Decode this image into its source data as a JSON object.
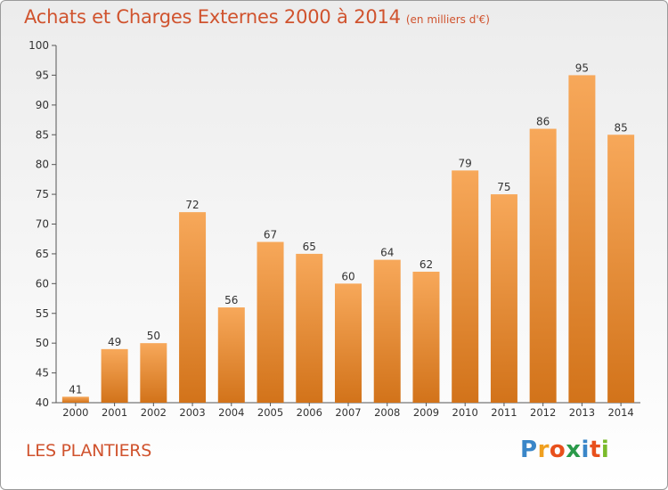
{
  "header": {
    "title": "Achats et Charges Externes 2000 à 2014",
    "unit": "(en milliers d'€)"
  },
  "footer": {
    "commune": "LES PLANTIERS",
    "logo_letters": [
      "P",
      "r",
      "o",
      "x",
      "i",
      "t",
      "i"
    ],
    "logo_colors": [
      "#3a86c8",
      "#f0a020",
      "#e8501c",
      "#2a9a4a",
      "#3a86c8",
      "#e8501c",
      "#7aba2a"
    ]
  },
  "chart_data": {
    "type": "bar",
    "title": "Achats et Charges Externes 2000 à 2014",
    "subtitle": "(en milliers d'€)",
    "categories": [
      "2000",
      "2001",
      "2002",
      "2003",
      "2004",
      "2005",
      "2006",
      "2007",
      "2008",
      "2009",
      "2010",
      "2011",
      "2012",
      "2013",
      "2014"
    ],
    "values": [
      41,
      49,
      50,
      72,
      56,
      67,
      65,
      60,
      64,
      62,
      79,
      75,
      86,
      95,
      85
    ],
    "data_labels": [
      "41",
      "49",
      "50",
      "72",
      "56",
      "67",
      "65",
      "60",
      "64",
      "62",
      "79",
      "75",
      "86",
      "95",
      "85"
    ],
    "ylim": [
      40,
      100
    ],
    "yticks": [
      40,
      45,
      50,
      55,
      60,
      65,
      70,
      75,
      80,
      85,
      90,
      95,
      100
    ],
    "grid": false,
    "legend": "none",
    "bar_color_light": "#f7a85a",
    "bar_color_dark": "#d2731a",
    "text_color": "#333333",
    "axis_color": "#555555"
  }
}
